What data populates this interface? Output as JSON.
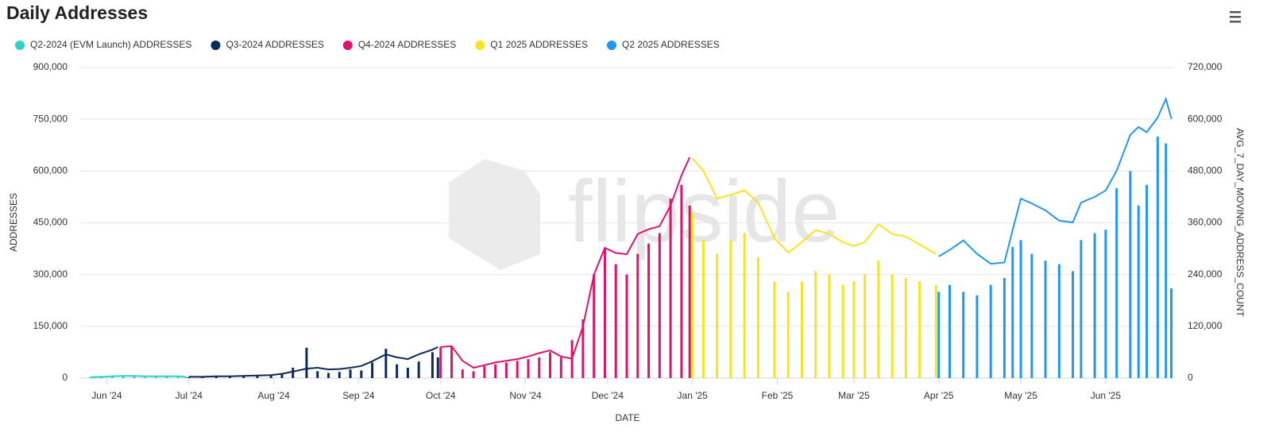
{
  "chart_data": {
    "type": "bar-line",
    "title": "Daily Addresses",
    "watermark": "flipside",
    "x_label": "DATE",
    "y_label": "ADDRESSES",
    "y2_label": "AVG_7_DAY_MOVING_ADDRESS_COUNT",
    "grid": true,
    "legend": "top-left",
    "xlim": [
      "2024-05-22",
      "2025-06-26"
    ],
    "xticks": [
      {
        "value": "2024-06-01",
        "label": "Jun '24"
      },
      {
        "value": "2024-07-01",
        "label": "Jul '24"
      },
      {
        "value": "2024-08-01",
        "label": "Aug '24"
      },
      {
        "value": "2024-09-01",
        "label": "Sep '24"
      },
      {
        "value": "2024-10-01",
        "label": "Oct '24"
      },
      {
        "value": "2024-11-01",
        "label": "Nov '24"
      },
      {
        "value": "2024-12-01",
        "label": "Dec '24"
      },
      {
        "value": "2025-01-01",
        "label": "Jan '25"
      },
      {
        "value": "2025-02-01",
        "label": "Feb '25"
      },
      {
        "value": "2025-03-01",
        "label": "Mar '25"
      },
      {
        "value": "2025-04-01",
        "label": "Apr '25"
      },
      {
        "value": "2025-05-01",
        "label": "May '25"
      },
      {
        "value": "2025-06-01",
        "label": "Jun '25"
      }
    ],
    "ylim": [
      0,
      900000
    ],
    "yticks": [
      0,
      {
        "value": 150000,
        "label": "150,000"
      },
      {
        "value": 300000,
        "label": "300,000"
      },
      {
        "value": 450000,
        "label": "450,000"
      },
      {
        "value": 600000,
        "label": "600,000"
      },
      {
        "value": 750000,
        "label": "750,000"
      },
      {
        "value": 900000,
        "label": "900,000"
      }
    ],
    "y2lim": [
      0,
      720000
    ],
    "y2ticks": [
      0,
      {
        "value": 120000,
        "label": "120,000"
      },
      {
        "value": 240000,
        "label": "240,000"
      },
      {
        "value": 360000,
        "label": "360,000"
      },
      {
        "value": 480000,
        "label": "480,000"
      },
      {
        "value": 600000,
        "label": "600,000"
      },
      {
        "value": 720000,
        "label": "720,000"
      }
    ],
    "series": [
      {
        "name": "Q2-2024 (EVM Launch) ADDRESSES",
        "color": "#2ed3c6",
        "x": [
          "2024-05-26",
          "2024-05-30",
          "2024-06-03",
          "2024-06-07",
          "2024-06-11",
          "2024-06-15",
          "2024-06-19",
          "2024-06-23",
          "2024-06-27",
          "2024-06-30"
        ],
        "values": [
          3000,
          4000,
          5000,
          6000,
          5000,
          4000,
          5000,
          4000,
          4000,
          3000
        ],
        "avg_values": [
          2000,
          3000,
          4000,
          5000,
          5000,
          4000,
          4000,
          4000,
          4000,
          3000
        ]
      },
      {
        "name": "Q3-2024 ADDRESSES",
        "color": "#0d2b5a",
        "x": [
          "2024-07-01",
          "2024-07-06",
          "2024-07-11",
          "2024-07-16",
          "2024-07-21",
          "2024-07-26",
          "2024-07-31",
          "2024-08-04",
          "2024-08-08",
          "2024-08-13",
          "2024-08-17",
          "2024-08-21",
          "2024-08-25",
          "2024-08-29",
          "2024-09-02",
          "2024-09-06",
          "2024-09-11",
          "2024-09-15",
          "2024-09-19",
          "2024-09-23",
          "2024-09-28",
          "2024-09-30"
        ],
        "values": [
          3000,
          4000,
          4000,
          5000,
          6000,
          7000,
          8000,
          12000,
          30000,
          88000,
          20000,
          15000,
          18000,
          25000,
          22000,
          45000,
          85000,
          40000,
          30000,
          48000,
          75000,
          60000
        ],
        "avg_values": [
          3000,
          3000,
          4000,
          4000,
          5000,
          6000,
          7000,
          10000,
          15000,
          22000,
          24000,
          20000,
          21000,
          24000,
          28000,
          39000,
          55000,
          48000,
          44000,
          55000,
          66000,
          72000
        ]
      },
      {
        "name": "Q4-2024 ADDRESSES",
        "color": "#e0136c",
        "x": [
          "2024-10-01",
          "2024-10-05",
          "2024-10-09",
          "2024-10-13",
          "2024-10-17",
          "2024-10-21",
          "2024-10-25",
          "2024-10-29",
          "2024-11-02",
          "2024-11-06",
          "2024-11-10",
          "2024-11-14",
          "2024-11-18",
          "2024-11-22",
          "2024-11-26",
          "2024-11-30",
          "2024-12-04",
          "2024-12-08",
          "2024-12-12",
          "2024-12-16",
          "2024-12-20",
          "2024-12-24",
          "2024-12-28",
          "2024-12-31"
        ],
        "values": [
          90000,
          92000,
          25000,
          20000,
          35000,
          40000,
          45000,
          50000,
          55000,
          60000,
          75000,
          60000,
          110000,
          170000,
          300000,
          375000,
          330000,
          300000,
          360000,
          390000,
          420000,
          520000,
          560000,
          500000
        ],
        "avg_values": [
          72000,
          74000,
          40000,
          24000,
          30000,
          36000,
          40000,
          44000,
          50000,
          58000,
          64000,
          50000,
          45000,
          120000,
          240000,
          302000,
          290000,
          287000,
          334000,
          345000,
          352000,
          400000,
          470000,
          512000
        ]
      },
      {
        "name": "Q1 2025 ADDRESSES",
        "color": "#f7e420",
        "x": [
          "2025-01-01",
          "2025-01-05",
          "2025-01-10",
          "2025-01-15",
          "2025-01-20",
          "2025-01-25",
          "2025-01-31",
          "2025-02-05",
          "2025-02-10",
          "2025-02-15",
          "2025-02-20",
          "2025-02-25",
          "2025-03-01",
          "2025-03-05",
          "2025-03-10",
          "2025-03-15",
          "2025-03-20",
          "2025-03-25",
          "2025-03-31"
        ],
        "values": [
          480000,
          400000,
          360000,
          400000,
          420000,
          350000,
          280000,
          250000,
          280000,
          310000,
          300000,
          270000,
          280000,
          300000,
          340000,
          300000,
          290000,
          280000,
          270000
        ],
        "avg_values": [
          509000,
          481000,
          416000,
          425000,
          435000,
          407000,
          324000,
          291000,
          315000,
          343000,
          334000,
          315000,
          306000,
          315000,
          357000,
          334000,
          328000,
          310000,
          288000
        ]
      },
      {
        "name": "Q2 2025 ADDRESSES",
        "color": "#2196f3",
        "x": [
          "2025-04-01",
          "2025-04-05",
          "2025-04-10",
          "2025-04-15",
          "2025-04-20",
          "2025-04-25",
          "2025-04-28",
          "2025-05-01",
          "2025-05-05",
          "2025-05-10",
          "2025-05-15",
          "2025-05-20",
          "2025-05-23",
          "2025-05-28",
          "2025-06-01",
          "2025-06-05",
          "2025-06-10",
          "2025-06-13",
          "2025-06-16",
          "2025-06-20",
          "2025-06-23",
          "2025-06-25"
        ],
        "values": [
          250000,
          270000,
          250000,
          240000,
          270000,
          290000,
          380000,
          400000,
          360000,
          340000,
          330000,
          310000,
          400000,
          420000,
          430000,
          550000,
          600000,
          500000,
          560000,
          700000,
          680000,
          260000
        ],
        "avg_values": [
          282000,
          297000,
          319000,
          288000,
          265000,
          268000,
          343000,
          416000,
          405000,
          389000,
          365000,
          361000,
          407000,
          420000,
          435000,
          481000,
          564000,
          582000,
          570000,
          604000,
          647000,
          601000
        ]
      }
    ]
  }
}
